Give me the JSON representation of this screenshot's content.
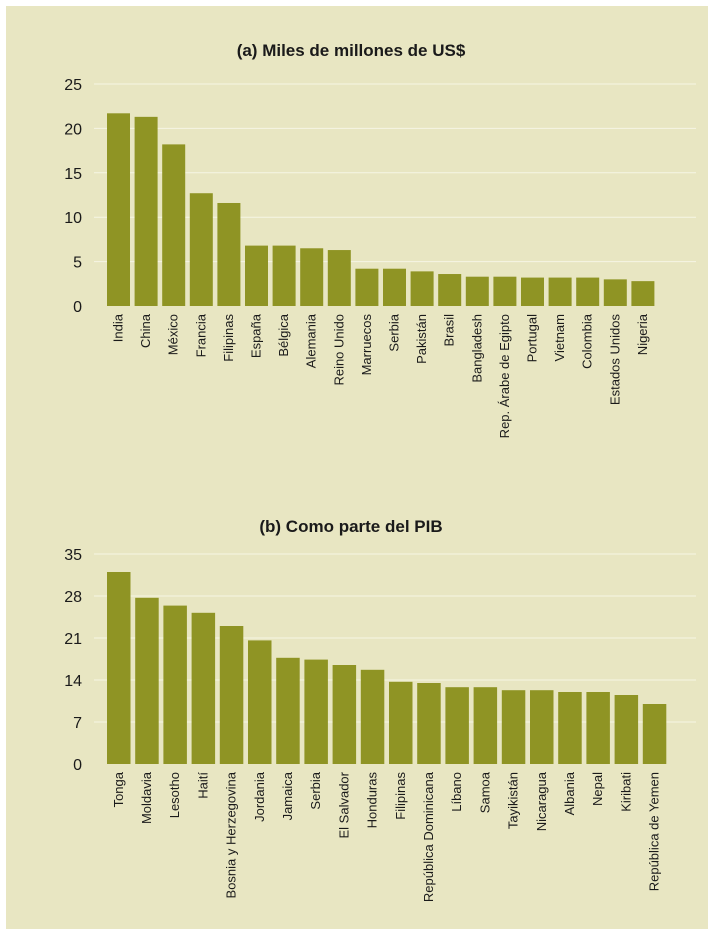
{
  "chart_data": [
    {
      "type": "bar",
      "title": "(a) Miles de millones de US$",
      "xlabel": "",
      "ylabel": "",
      "ylim": [
        0,
        25
      ],
      "yticks": [
        0,
        5,
        10,
        15,
        20,
        25
      ],
      "grid": true,
      "bar_color": "#8f9424",
      "categories": [
        "India",
        "China",
        "México",
        "Francia",
        "Filipinas",
        "España",
        "Bélgica",
        "Alemania",
        "Reino Unido",
        "Marruecos",
        "Serbia",
        "Pakistán",
        "Brasil",
        "Bangladesh",
        "Rep. Árabe de Egipto",
        "Portugal",
        "Vietnam",
        "Colombia",
        "Estados Unidos",
        "Nigeria"
      ],
      "values": [
        21.7,
        21.3,
        18.2,
        12.7,
        11.6,
        6.8,
        6.8,
        6.5,
        6.3,
        4.2,
        4.2,
        3.9,
        3.6,
        3.3,
        3.3,
        3.2,
        3.2,
        3.2,
        3.0,
        2.8
      ]
    },
    {
      "type": "bar",
      "title": "(b) Como parte del PIB",
      "xlabel": "",
      "ylabel": "",
      "ylim": [
        0,
        35
      ],
      "yticks": [
        0,
        7,
        14,
        21,
        28,
        35
      ],
      "grid": true,
      "bar_color": "#8f9424",
      "categories": [
        "Tonga",
        "Moldavia",
        "Lesotho",
        "Haití",
        "Bosnia y Herzegovina",
        "Jordania",
        "Jamaica",
        "Serbia",
        "El Salvador",
        "Honduras",
        "Filipinas",
        "República Dominicana",
        "Líbano",
        "Samoa",
        "Tayikistán",
        "Nicaragua",
        "Albania",
        "Nepal",
        "Kiribati",
        "República de Yemen"
      ],
      "values": [
        32.0,
        27.7,
        26.4,
        25.2,
        23.0,
        20.6,
        17.7,
        17.4,
        16.5,
        15.7,
        13.7,
        13.5,
        12.8,
        12.8,
        12.3,
        12.3,
        12.0,
        12.0,
        11.5,
        10.0
      ]
    }
  ]
}
